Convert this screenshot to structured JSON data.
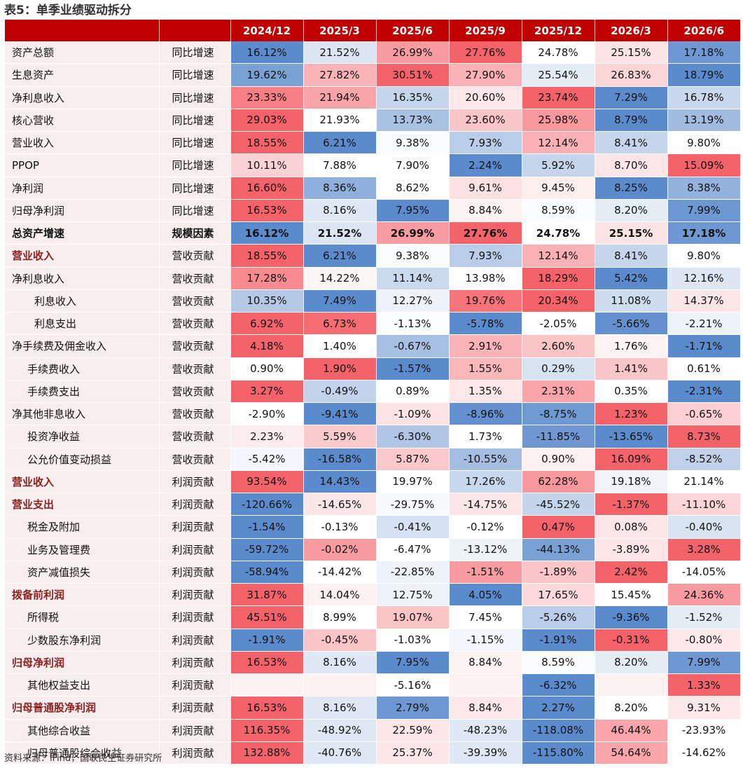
{
  "title": "表5：单季业绩驱动拆分",
  "source": "资料来源：iFind，国联民生证券研究所",
  "columns": [
    "2024/12",
    "2025/3",
    "2025/6",
    "2025/9",
    "2025/12",
    "2026/3",
    "2026/6"
  ],
  "colors": {
    "header": "#c00000",
    "positive_high": "#f4636a",
    "negative_high": "#5b8bcc",
    "label_bg": "#f8eeee"
  },
  "rows": [
    {
      "label": "资产总额",
      "factor": "同比增速",
      "indent": 0,
      "style": "",
      "values": [
        "16.12%",
        "21.52%",
        "26.99%",
        "27.76%",
        "24.78%",
        "25.15%",
        "17.18%"
      ],
      "bg": [
        "#5b8bcc",
        "#dbe5f3",
        "#f89ca1",
        "#f4636a",
        "#ffffff",
        "#fce3e4",
        "#6d98d1"
      ]
    },
    {
      "label": "生息资产",
      "factor": "同比增速",
      "indent": 0,
      "style": "",
      "values": [
        "19.62%",
        "27.82%",
        "30.51%",
        "27.90%",
        "25.54%",
        "26.83%",
        "18.79%"
      ],
      "bg": [
        "#7aa1d4",
        "#fab3b7",
        "#f4636a",
        "#fab2b6",
        "#e4ecf6",
        "#fcd5d7",
        "#5b8bcc"
      ]
    },
    {
      "label": "净利息收入",
      "factor": "同比增速",
      "indent": 0,
      "style": "",
      "values": [
        "23.33%",
        "21.94%",
        "16.35%",
        "20.60%",
        "23.74%",
        "7.29%",
        "16.78%"
      ],
      "bg": [
        "#f68086",
        "#f9a4a8",
        "#c4d5ec",
        "#fde7e8",
        "#f4636a",
        "#5b8bcc",
        "#c9d8ee"
      ]
    },
    {
      "label": "核心营收",
      "factor": "同比增速",
      "indent": 0,
      "style": "",
      "values": [
        "29.03%",
        "21.93%",
        "13.73%",
        "23.60%",
        "25.98%",
        "8.79%",
        "13.19%"
      ],
      "bg": [
        "#f4636a",
        "#ffffff",
        "#a9c1e3",
        "#fbc6c9",
        "#f8979c",
        "#5b8bcc",
        "#a2bce1"
      ]
    },
    {
      "label": "营业收入",
      "factor": "同比增速",
      "indent": 0,
      "style": "",
      "values": [
        "18.55%",
        "6.21%",
        "9.38%",
        "7.93%",
        "12.14%",
        "8.41%",
        "9.80%"
      ],
      "bg": [
        "#f4636a",
        "#5b8bcc",
        "#fbfcfe",
        "#b9cce8",
        "#f9b1b5",
        "#c5d5ec",
        "#ffffff"
      ]
    },
    {
      "label": "PPOP",
      "factor": "同比增速",
      "indent": 0,
      "style": "",
      "values": [
        "10.11%",
        "7.88%",
        "7.90%",
        "2.24%",
        "5.92%",
        "8.70%",
        "15.09%"
      ],
      "bg": [
        "#fcd3d5",
        "#ffffff",
        "#fefefe",
        "#5b8bcc",
        "#c5d5ec",
        "#fde6e7",
        "#f4636a"
      ]
    },
    {
      "label": "净利润",
      "factor": "同比增速",
      "indent": 0,
      "style": "",
      "values": [
        "16.60%",
        "8.36%",
        "8.62%",
        "9.61%",
        "9.45%",
        "8.25%",
        "8.38%"
      ],
      "bg": [
        "#f4636a",
        "#8fafdc",
        "#ffffff",
        "#fde1e2",
        "#feefef",
        "#5b8bcc",
        "#93b2dd"
      ]
    },
    {
      "label": "归母净利润",
      "factor": "同比增速",
      "indent": 0,
      "style": "",
      "values": [
        "16.53%",
        "8.16%",
        "7.95%",
        "8.84%",
        "8.59%",
        "8.20%",
        "7.99%"
      ],
      "bg": [
        "#f4636a",
        "#dfe8f5",
        "#5b8bcc",
        "#fef3f3",
        "#fbfcfe",
        "#e4ecf6",
        "#6d98d1"
      ]
    },
    {
      "label": "总资产增速",
      "factor": "规模因素",
      "indent": 0,
      "style": "em",
      "sep": true,
      "values": [
        "16.12%",
        "21.52%",
        "26.99%",
        "27.76%",
        "24.78%",
        "25.15%",
        "17.18%"
      ],
      "bg": [
        "#5b8bcc",
        "#dbe5f3",
        "#f89ca1",
        "#f4636a",
        "#ffffff",
        "#fce3e4",
        "#6d98d1"
      ]
    },
    {
      "label": "营业收入",
      "factor": "营收贡献",
      "indent": 0,
      "style": "em",
      "values": [
        "18.55%",
        "6.21%",
        "9.38%",
        "7.93%",
        "12.14%",
        "8.41%",
        "9.80%"
      ],
      "bg": [
        "#f4636a",
        "#5b8bcc",
        "#fbfcfe",
        "#b9cce8",
        "#f9b1b5",
        "#c5d5ec",
        "#ffffff"
      ]
    },
    {
      "label": "净利息收入",
      "factor": "营收贡献",
      "indent": 0,
      "style": "",
      "values": [
        "17.28%",
        "14.22%",
        "11.14%",
        "13.98%",
        "18.29%",
        "5.42%",
        "12.16%"
      ],
      "bg": [
        "#f78b90",
        "#fef5f5",
        "#cbd9ee",
        "#ffffff",
        "#f4636a",
        "#5b8bcc",
        "#dde7f4"
      ]
    },
    {
      "label": "利息收入",
      "factor": "营收贡献",
      "indent": 2,
      "style": "",
      "values": [
        "10.35%",
        "7.49%",
        "12.27%",
        "19.76%",
        "20.34%",
        "11.08%",
        "14.37%"
      ],
      "bg": [
        "#b5c9e7",
        "#5b8bcc",
        "#eef3f9",
        "#f67479",
        "#f4636a",
        "#cedcef",
        "#fde6e7"
      ]
    },
    {
      "label": "利息支出",
      "factor": "营收贡献",
      "indent": 2,
      "style": "",
      "values": [
        "6.92%",
        "6.73%",
        "-1.13%",
        "-5.78%",
        "-2.05%",
        "-5.66%",
        "-2.21%"
      ],
      "bg": [
        "#f4636a",
        "#f56c72",
        "#fcfdfe",
        "#5b8bcc",
        "#ffffff",
        "#6590cf",
        "#eef3f9"
      ]
    },
    {
      "label": "净手续费及佣金收入",
      "factor": "营收贡献",
      "indent": 0,
      "style": "",
      "values": [
        "4.18%",
        "1.40%",
        "-0.67%",
        "2.91%",
        "2.60%",
        "1.76%",
        "-1.71%"
      ],
      "bg": [
        "#f4636a",
        "#ffffff",
        "#a7bfe2",
        "#fab3b7",
        "#fbc4c7",
        "#fef3f3",
        "#5b8bcc"
      ]
    },
    {
      "label": "手续费收入",
      "factor": "营收贡献",
      "indent": 1,
      "style": "",
      "values": [
        "0.90%",
        "1.90%",
        "-1.57%",
        "1.55%",
        "0.29%",
        "1.41%",
        "0.61%"
      ],
      "bg": [
        "#ffffff",
        "#f4636a",
        "#5b8bcc",
        "#fbb8bb",
        "#d8e3f2",
        "#fbc6c9",
        "#ffffff"
      ]
    },
    {
      "label": "手续费支出",
      "factor": "营收贡献",
      "indent": 1,
      "style": "",
      "values": [
        "3.27%",
        "-0.49%",
        "0.89%",
        "1.35%",
        "2.31%",
        "0.35%",
        "-2.31%"
      ],
      "bg": [
        "#f4636a",
        "#c2d3eb",
        "#ffffff",
        "#fde7e8",
        "#f9a5a9",
        "#fefefe",
        "#5b8bcc"
      ]
    },
    {
      "label": "净其他非息收入",
      "factor": "营收贡献",
      "indent": 0,
      "style": "",
      "values": [
        "-2.90%",
        "-9.41%",
        "-1.09%",
        "-8.96%",
        "-8.75%",
        "1.23%",
        "-0.65%"
      ],
      "bg": [
        "#ffffff",
        "#5b8bcc",
        "#fde3e4",
        "#6590cf",
        "#6f99d1",
        "#f4636a",
        "#fcd0d2"
      ]
    },
    {
      "label": "投资净收益",
      "factor": "营收贡献",
      "indent": 1,
      "style": "",
      "values": [
        "2.23%",
        "5.59%",
        "-6.30%",
        "1.73%",
        "-11.85%",
        "-13.65%",
        "8.73%"
      ],
      "bg": [
        "#fcedee",
        "#fbcbcd",
        "#b1c6e6",
        "#ffffff",
        "#7097d1",
        "#5b8bcc",
        "#f4636a"
      ]
    },
    {
      "label": "公允价值变动损益",
      "factor": "营收贡献",
      "indent": 1,
      "style": "",
      "values": [
        "-5.42%",
        "-16.58%",
        "5.87%",
        "-10.55%",
        "0.90%",
        "16.09%",
        "-8.52%"
      ],
      "bg": [
        "#f3f6fb",
        "#5b8bcc",
        "#fbc9cb",
        "#a4bde1",
        "#fef1f1",
        "#f4636a",
        "#c0d2ea"
      ]
    },
    {
      "label": "营业收入",
      "factor": "利润贡献",
      "indent": 0,
      "style": "em",
      "sep": true,
      "values": [
        "93.54%",
        "14.43%",
        "19.97%",
        "17.26%",
        "62.28%",
        "19.18%",
        "21.14%"
      ],
      "bg": [
        "#f4636a",
        "#5b8bcc",
        "#ffffff",
        "#c8d8ee",
        "#f8979c",
        "#f0f4fa",
        "#ffffff"
      ]
    },
    {
      "label": "营业支出",
      "factor": "利润贡献",
      "indent": 0,
      "style": "em",
      "values": [
        "-120.66%",
        "-14.65%",
        "-29.75%",
        "-14.75%",
        "-45.52%",
        "-1.37%",
        "-11.10%"
      ],
      "bg": [
        "#5b8bcc",
        "#fde6e7",
        "#f8f9fc",
        "#fde6e7",
        "#c3d4eb",
        "#f4636a",
        "#fcd5d7"
      ]
    },
    {
      "label": "税金及附加",
      "factor": "利润贡献",
      "indent": 1,
      "style": "",
      "values": [
        "-1.54%",
        "-0.13%",
        "-0.41%",
        "-0.12%",
        "0.47%",
        "0.08%",
        "-0.40%"
      ],
      "bg": [
        "#5b8bcc",
        "#ffffff",
        "#d6e1f1",
        "#ffffff",
        "#f4636a",
        "#fde6e7",
        "#d9e4f2"
      ]
    },
    {
      "label": "业务及管理费",
      "factor": "利润贡献",
      "indent": 1,
      "style": "",
      "values": [
        "-59.72%",
        "-0.02%",
        "-6.47%",
        "-13.12%",
        "-44.13%",
        "-3.89%",
        "3.28%"
      ],
      "bg": [
        "#5b8bcc",
        "#f89ca1",
        "#ffffff",
        "#edf2f9",
        "#7aa1d4",
        "#fde6e7",
        "#f4636a"
      ]
    },
    {
      "label": "资产减值损失",
      "factor": "利润贡献",
      "indent": 1,
      "style": "",
      "values": [
        "-58.94%",
        "-14.42%",
        "-22.85%",
        "-1.51%",
        "-1.89%",
        "2.42%",
        "-14.05%"
      ],
      "bg": [
        "#5b8bcc",
        "#ffffff",
        "#eef3f9",
        "#f89ca1",
        "#fbc6c9",
        "#f4636a",
        "#ffffff"
      ]
    },
    {
      "label": "拨备前利润",
      "factor": "利润贡献",
      "indent": 0,
      "style": "em",
      "values": [
        "31.87%",
        "14.04%",
        "12.75%",
        "4.05%",
        "17.65%",
        "15.45%",
        "24.36%"
      ],
      "bg": [
        "#f4636a",
        "#fdf1f1",
        "#eef3f9",
        "#5b8bcc",
        "#fcdadc",
        "#ffffff",
        "#f89ca1"
      ]
    },
    {
      "label": "所得税",
      "factor": "利润贡献",
      "indent": 1,
      "style": "",
      "values": [
        "45.51%",
        "8.99%",
        "19.07%",
        "7.45%",
        "-5.26%",
        "-9.36%",
        "-1.52%"
      ],
      "bg": [
        "#f4636a",
        "#ffffff",
        "#fbc4c7",
        "#ffffff",
        "#b9cce8",
        "#5b8bcc",
        "#e4ecf6"
      ]
    },
    {
      "label": "少数股东净利润",
      "factor": "利润贡献",
      "indent": 1,
      "style": "",
      "values": [
        "-1.91%",
        "-0.45%",
        "-1.03%",
        "-1.15%",
        "-1.91%",
        "-0.31%",
        "-0.80%"
      ],
      "bg": [
        "#5b8bcc",
        "#fbc4c7",
        "#ffffff",
        "#f3f6fb",
        "#5b8bcc",
        "#f4636a",
        "#fde9ea"
      ]
    },
    {
      "label": "归母净利润",
      "factor": "利润贡献",
      "indent": 0,
      "style": "em",
      "values": [
        "16.53%",
        "8.16%",
        "7.95%",
        "8.84%",
        "8.59%",
        "8.20%",
        "7.99%"
      ],
      "bg": [
        "#f4636a",
        "#dfe8f5",
        "#5b8bcc",
        "#fef3f3",
        "#fbfcfe",
        "#e4ecf6",
        "#6d98d1"
      ]
    },
    {
      "label": "其他权益支出",
      "factor": "利润贡献",
      "indent": 1,
      "style": "",
      "values": [
        "",
        "",
        "-5.16%",
        "",
        "-6.32%",
        "",
        "1.33%"
      ],
      "bg": [
        "#fdf2f2",
        "#fdf2f2",
        "#ffffff",
        "#fdf2f2",
        "#5b8bcc",
        "#fdf2f2",
        "#f4636a"
      ]
    },
    {
      "label": "归母普通股净利润",
      "factor": "利润贡献",
      "indent": 0,
      "style": "em",
      "values": [
        "16.53%",
        "8.16%",
        "2.79%",
        "8.84%",
        "2.27%",
        "8.20%",
        "9.31%"
      ],
      "bg": [
        "#f4636a",
        "#dfe8f5",
        "#6d98d1",
        "#fde9ea",
        "#5b8bcc",
        "#ffffff",
        "#fde9ea"
      ]
    },
    {
      "label": "其他综合收益",
      "factor": "利润贡献",
      "indent": 1,
      "style": "",
      "values": [
        "116.35%",
        "-48.92%",
        "22.59%",
        "-48.23%",
        "-118.08%",
        "46.44%",
        "-23.93%"
      ],
      "bg": [
        "#f4636a",
        "#dfe8f5",
        "#fde6e7",
        "#dfe8f5",
        "#5b8bcc",
        "#f9a5a9",
        "#fefefe"
      ]
    },
    {
      "label": "归母普通股综合收益",
      "factor": "利润贡献",
      "indent": 1,
      "style": "",
      "values": [
        "132.88%",
        "-40.76%",
        "25.37%",
        "-39.39%",
        "-115.80%",
        "54.64%",
        "-14.62%"
      ],
      "bg": [
        "#f4636a",
        "#dfe8f5",
        "#fde6e7",
        "#dfe8f5",
        "#5b8bcc",
        "#f9a5a9",
        "#ffffff"
      ]
    }
  ]
}
